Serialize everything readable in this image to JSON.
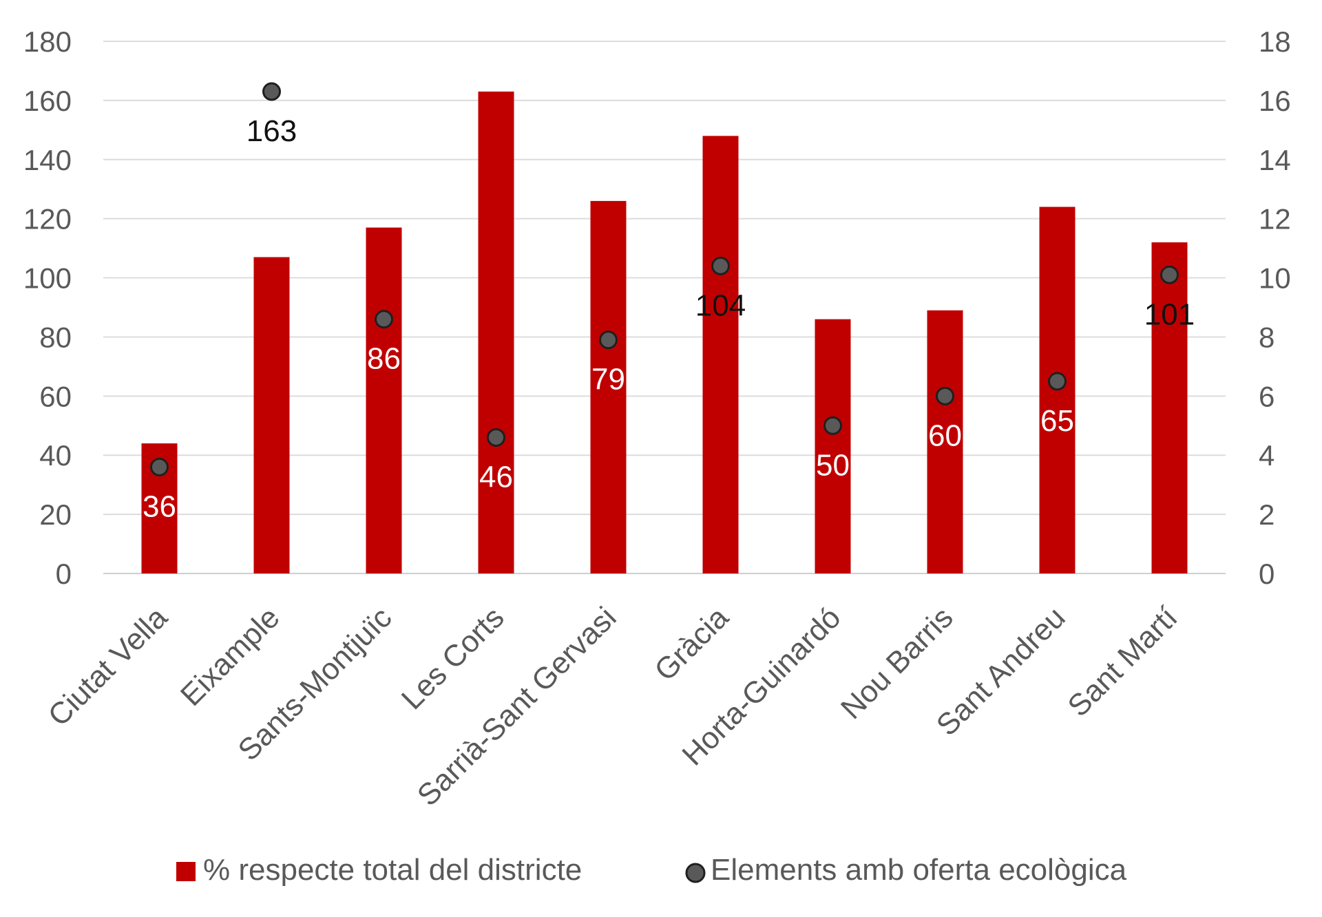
{
  "chart_data": {
    "type": "bar",
    "categories": [
      "Ciutat Vella",
      "Eixample",
      "Sants-Montjuïc",
      "Les Corts",
      "Sarrià-Sant Gervasi",
      "Gràcia",
      "Horta-Guinardó",
      "Nou Barris",
      "Sant Andreu",
      "Sant Martí"
    ],
    "series": [
      {
        "name": "% respecte total del districte",
        "type": "bar",
        "axis": "right",
        "values": [
          4.4,
          10.7,
          11.7,
          16.3,
          12.6,
          14.8,
          8.6,
          8.9,
          12.4,
          11.2
        ],
        "color": "#c00000"
      },
      {
        "name": "Elements amb oferta ecològica",
        "type": "scatter",
        "axis": "left",
        "values": [
          36,
          163,
          86,
          46,
          79,
          104,
          50,
          60,
          65,
          101
        ],
        "labels": [
          "36",
          "163",
          "86",
          "46",
          "79",
          "104",
          "50",
          "60",
          "65",
          "101"
        ],
        "color": "#595959"
      }
    ],
    "left_axis": {
      "ylim": [
        0,
        180
      ],
      "ticks": [
        "0",
        "20",
        "40",
        "60",
        "80",
        "100",
        "120",
        "140",
        "160",
        "180"
      ]
    },
    "right_axis": {
      "ylim": [
        0,
        18
      ],
      "ticks": [
        "0",
        "2",
        "4",
        "6",
        "8",
        "10",
        "12",
        "14",
        "16",
        "18"
      ]
    },
    "grid": true,
    "legend_position": "bottom",
    "data_label_colors": [
      "white",
      "black",
      "white",
      "white",
      "white",
      "black",
      "white",
      "white",
      "white",
      "black"
    ]
  }
}
